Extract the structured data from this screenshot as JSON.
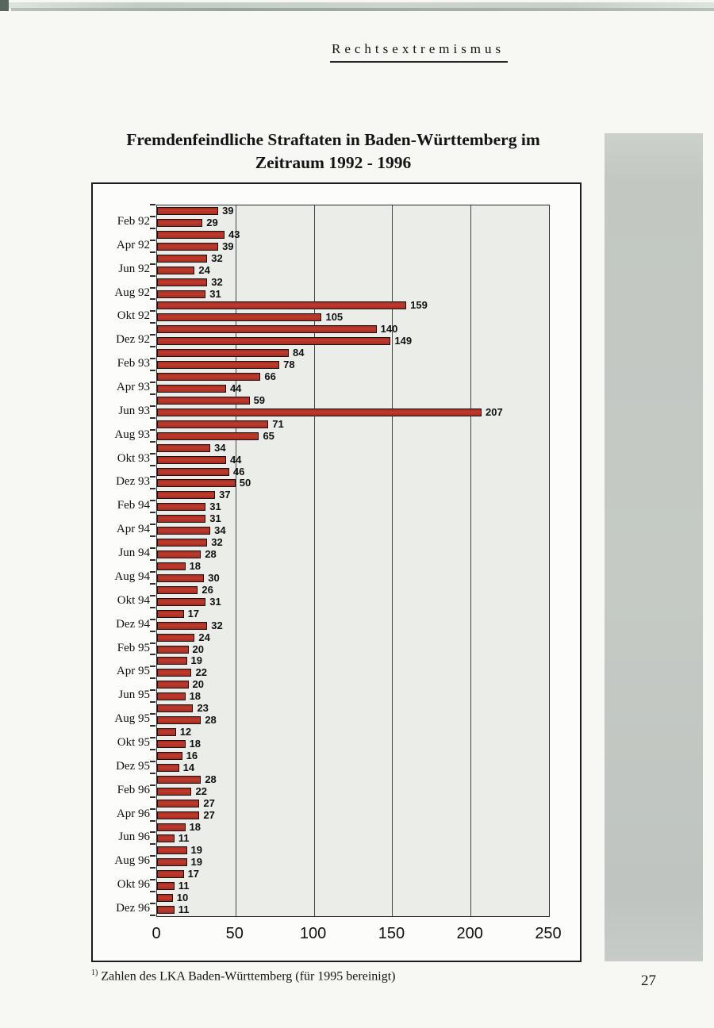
{
  "page": {
    "header": "Rechtsextremismus",
    "footnote_marker": "1)",
    "footnote_text": "Zahlen des LKA Baden-Württemberg (für 1995 bereinigt)",
    "page_number": "27"
  },
  "chart_data": {
    "type": "bar",
    "orientation": "horizontal",
    "title_line1": "Fremdenfeindliche Straftaten in Baden-Württemberg im",
    "title_line2": "Zeitraum 1992 - 1996",
    "xlabel": "",
    "ylabel": "",
    "xlim": [
      0,
      250
    ],
    "x_ticks": [
      0,
      50,
      100,
      150,
      200,
      250
    ],
    "grid": true,
    "legend_position": "none",
    "bar_color": "#b23026",
    "plot_background": "#ebede8",
    "categories": [
      "",
      "Feb 92",
      "",
      "Apr 92",
      "",
      "Jun 92",
      "",
      "Aug 92",
      "",
      "Okt 92",
      "",
      "Dez 92",
      "",
      "Feb 93",
      "",
      "Apr 93",
      "",
      "Jun 93",
      "",
      "Aug 93",
      "",
      "Okt 93",
      "",
      "Dez 93",
      "",
      "Feb 94",
      "",
      "Apr 94",
      "",
      "Jun 94",
      "",
      "Aug 94",
      "",
      "Okt 94",
      "",
      "Dez 94",
      "",
      "Feb 95",
      "",
      "Apr 95",
      "",
      "Jun 95",
      "",
      "Aug 95",
      "",
      "Okt 95",
      "",
      "Dez 95",
      "",
      "Feb 96",
      "",
      "Apr 96",
      "",
      "Jun 96",
      "",
      "Aug 96",
      "",
      "Okt 96",
      "",
      "Dez 96"
    ],
    "values": [
      39,
      29,
      43,
      39,
      32,
      24,
      32,
      31,
      159,
      105,
      140,
      149,
      84,
      78,
      66,
      44,
      59,
      207,
      71,
      65,
      34,
      44,
      46,
      50,
      37,
      31,
      31,
      34,
      32,
      28,
      18,
      30,
      26,
      31,
      17,
      32,
      24,
      20,
      19,
      22,
      20,
      18,
      23,
      28,
      12,
      18,
      16,
      14,
      28,
      22,
      27,
      27,
      18,
      11,
      19,
      19,
      17,
      11,
      10,
      11
    ]
  }
}
